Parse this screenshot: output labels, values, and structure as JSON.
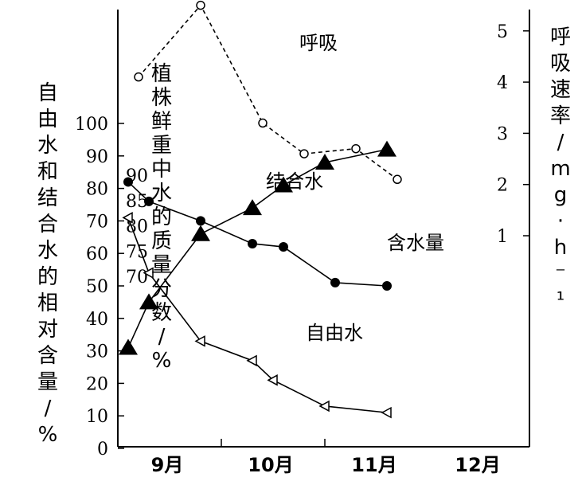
{
  "chart_data": {
    "type": "line",
    "x_axis": {
      "tick_labels": [
        "9月",
        "10月",
        "11月",
        "12月"
      ]
    },
    "left_axis": {
      "label": "自由水和结合水的相对含量/%",
      "ticks": [
        "0",
        "10",
        "20",
        "30",
        "40",
        "50",
        "60",
        "70",
        "80",
        "90",
        "100"
      ],
      "ylim": [
        0,
        100
      ]
    },
    "middle_axis": {
      "label": "植株鲜重中水的质量分数/%",
      "ticks": [
        "70",
        "75",
        "80",
        "85",
        "90"
      ],
      "ylim": [
        68.75,
        93.75
      ]
    },
    "right_axis": {
      "label": "呼吸速率/mg·h⁻¹",
      "ticks": [
        "1",
        "2",
        "3",
        "4",
        "5"
      ],
      "ylim": [
        -3.3,
        5.5
      ]
    },
    "series": [
      {
        "name": "呼吸",
        "axis": "right",
        "marker": "open-circle",
        "line_style": "dashed",
        "x": [
          9.2,
          9.8,
          10.4,
          10.8,
          11.3,
          11.7
        ],
        "values": [
          4.1,
          5.5,
          3.2,
          2.6,
          2.7,
          2.1
        ]
      },
      {
        "name": "含水量",
        "axis": "left",
        "marker": "filled-circle",
        "line_style": "solid",
        "x": [
          9.1,
          9.3,
          9.8,
          10.3,
          10.6,
          11.1,
          11.6
        ],
        "values": [
          82,
          76,
          70,
          63,
          62,
          51,
          50
        ]
      },
      {
        "name": "结合水",
        "axis": "left",
        "marker": "filled-triangle",
        "line_style": "solid",
        "x": [
          9.1,
          9.3,
          9.8,
          10.3,
          10.6,
          11.0,
          11.6
        ],
        "values": [
          31,
          45,
          66,
          74,
          81,
          88,
          92
        ]
      },
      {
        "name": "自由水",
        "axis": "left",
        "marker": "open-triangle-left",
        "line_style": "solid",
        "x": [
          9.1,
          9.3,
          9.8,
          10.3,
          10.5,
          11.0,
          11.6
        ],
        "values": [
          71,
          54,
          33,
          27,
          21,
          13,
          11
        ]
      }
    ]
  }
}
